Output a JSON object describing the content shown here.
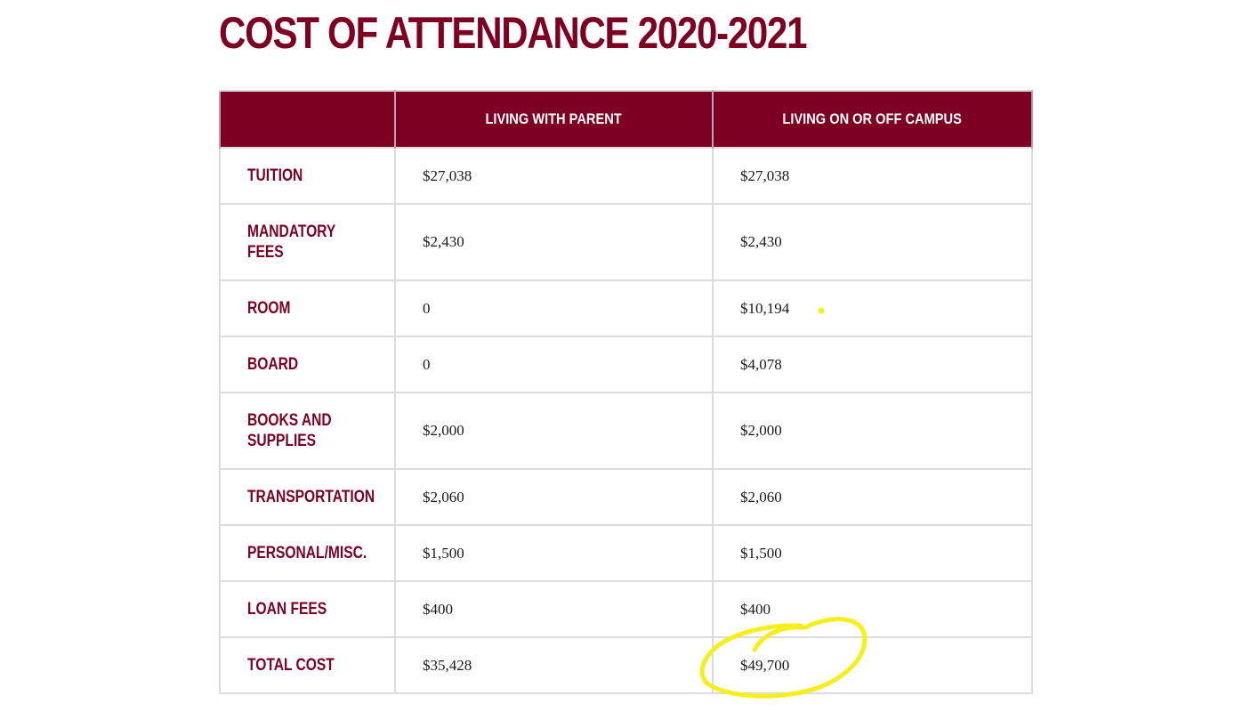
{
  "title": "COST OF ATTENDANCE 2020-2021",
  "table": {
    "headers": [
      "",
      "LIVING WITH PARENT",
      "LIVING ON OR OFF CAMPUS"
    ],
    "rows": [
      {
        "label": "TUITION",
        "with_parent": "$27,038",
        "on_off_campus": "$27,038"
      },
      {
        "label": "MANDATORY\nFEES",
        "with_parent": "$2,430",
        "on_off_campus": "$2,430"
      },
      {
        "label": "ROOM",
        "with_parent": "0",
        "on_off_campus": "$10,194"
      },
      {
        "label": "BOARD",
        "with_parent": "0",
        "on_off_campus": "$4,078"
      },
      {
        "label": "BOOKS AND\nSUPPLIES",
        "with_parent": "$2,000",
        "on_off_campus": "$2,000"
      },
      {
        "label": "TRANSPORTATION",
        "with_parent": "$2,060",
        "on_off_campus": "$2,060"
      },
      {
        "label": "PERSONAL/MISC.",
        "with_parent": "$1,500",
        "on_off_campus": "$1,500"
      },
      {
        "label": "LOAN FEES",
        "with_parent": "$400",
        "on_off_campus": "$400"
      },
      {
        "label": "TOTAL COST",
        "with_parent": "$35,428",
        "on_off_campus": "$49,700"
      }
    ]
  },
  "colors": {
    "brand": "#7d0023",
    "highlight": "#f5ef1c"
  }
}
